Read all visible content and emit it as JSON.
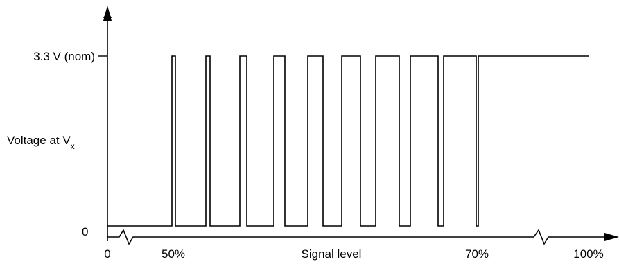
{
  "chart_data": {
    "type": "line",
    "title": "",
    "ylabel": {
      "main": "Voltage at V",
      "subscript": "x"
    },
    "xlabel": "Signal level",
    "y_ticks": [
      {
        "label": "3.3 V (nom)",
        "value": 3.3
      },
      {
        "label": "0",
        "value": 0
      }
    ],
    "x_ticks": [
      {
        "label": "0",
        "value": 0
      },
      {
        "label": "50%",
        "value": 50
      },
      {
        "label": "70%",
        "value": 70
      },
      {
        "label": "100%",
        "value": 100
      }
    ],
    "x_axis_breaks": [
      "between 0 and 50%",
      "between 70% and 100%"
    ],
    "pulses": 9,
    "description_of_trace": "Output stays at 0 below 50%, toggles between 0 and 3.3 V with pulse widths increasing from 50% to 70%, then stays at 3.3 V above 70%"
  }
}
